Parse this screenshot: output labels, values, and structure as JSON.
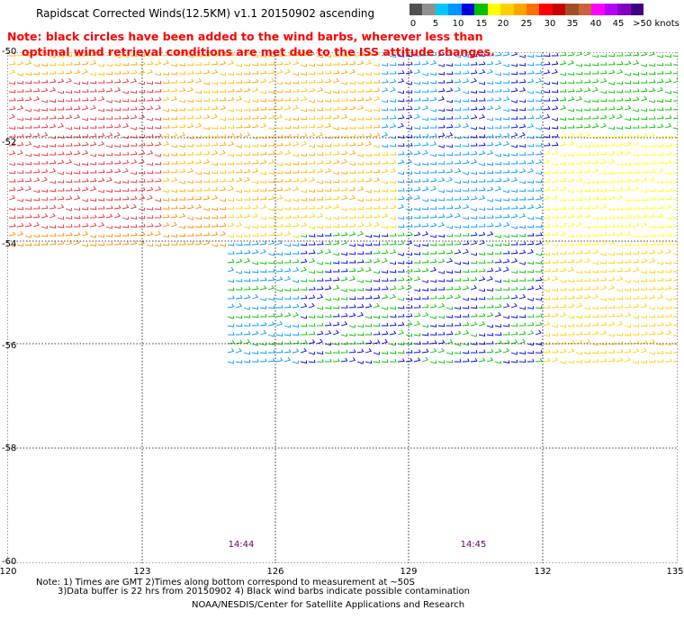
{
  "title": "Rapidscat Corrected Winds(12.5KM) v1.1 20150902 ascending",
  "note": {
    "line1": "Note: black circles have been added to the wind barbs, wherever less than",
    "line2": "optimal wind retrieval conditions are met due to the ISS attitude changes."
  },
  "legend": {
    "labels": [
      "0",
      "5",
      "10",
      "15",
      "20",
      "25",
      "30",
      "35",
      "40",
      "45",
      ">50 knots"
    ],
    "colors": [
      "#505050",
      "#909090",
      "#00c8ff",
      "#0096ff",
      "#0000e0",
      "#00c000",
      "#ffff00",
      "#ffd000",
      "#ffa500",
      "#ff7000",
      "#ff0000",
      "#c80000",
      "#a05028",
      "#c8643c",
      "#ff00ff",
      "#b400ff",
      "#8000c0",
      "#400080"
    ]
  },
  "axes": {
    "x_ticks": [
      "120",
      "123",
      "126",
      "129",
      "132",
      "135"
    ],
    "y_ticks": [
      "-50",
      "-52",
      "-54",
      "-56",
      "-58",
      "-60"
    ]
  },
  "times": [
    "14:44",
    "14:45"
  ],
  "footer": {
    "line1": "Note: 1) Times are GMT 2)Times along bottom correspond to measurement at ~50S",
    "line2": "3)Data buffer is 22 hrs from 20150902 4) Black wind barbs indicate possible contamination",
    "credit": "NOAA/NESDIS/Center for Satellite Applications and Research"
  }
}
